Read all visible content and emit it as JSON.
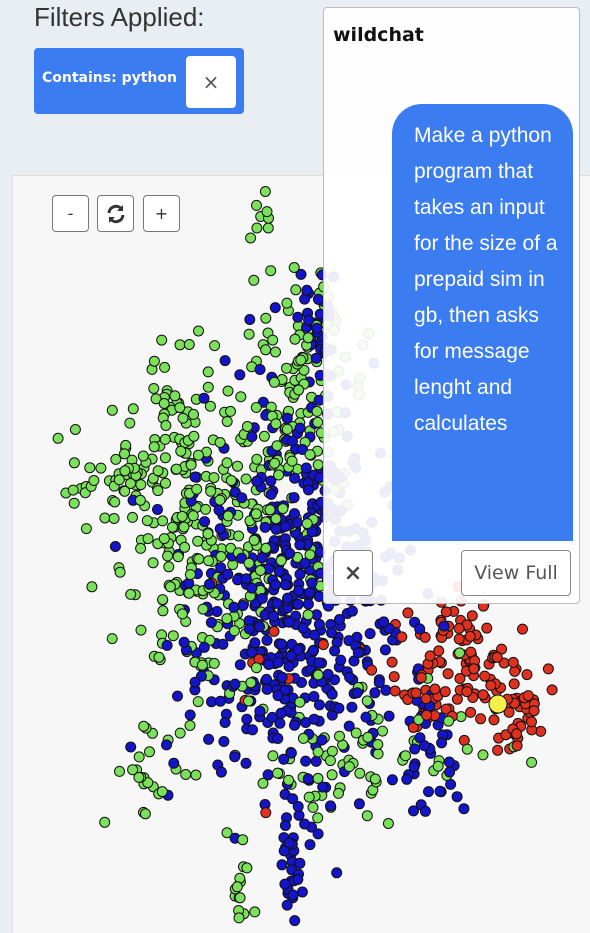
{
  "filters": {
    "title": "Filters Applied:",
    "chip": "Contains: python",
    "chip_close": "×"
  },
  "controls": {
    "zoom_out": "-",
    "zoom_in": "+"
  },
  "popup": {
    "title": "wildchat",
    "message": "Make a python program that takes an input for the size of a prepaid sim in gb, then asks for message lenght and calculates",
    "close": "×",
    "view_full": "View Full"
  }
}
